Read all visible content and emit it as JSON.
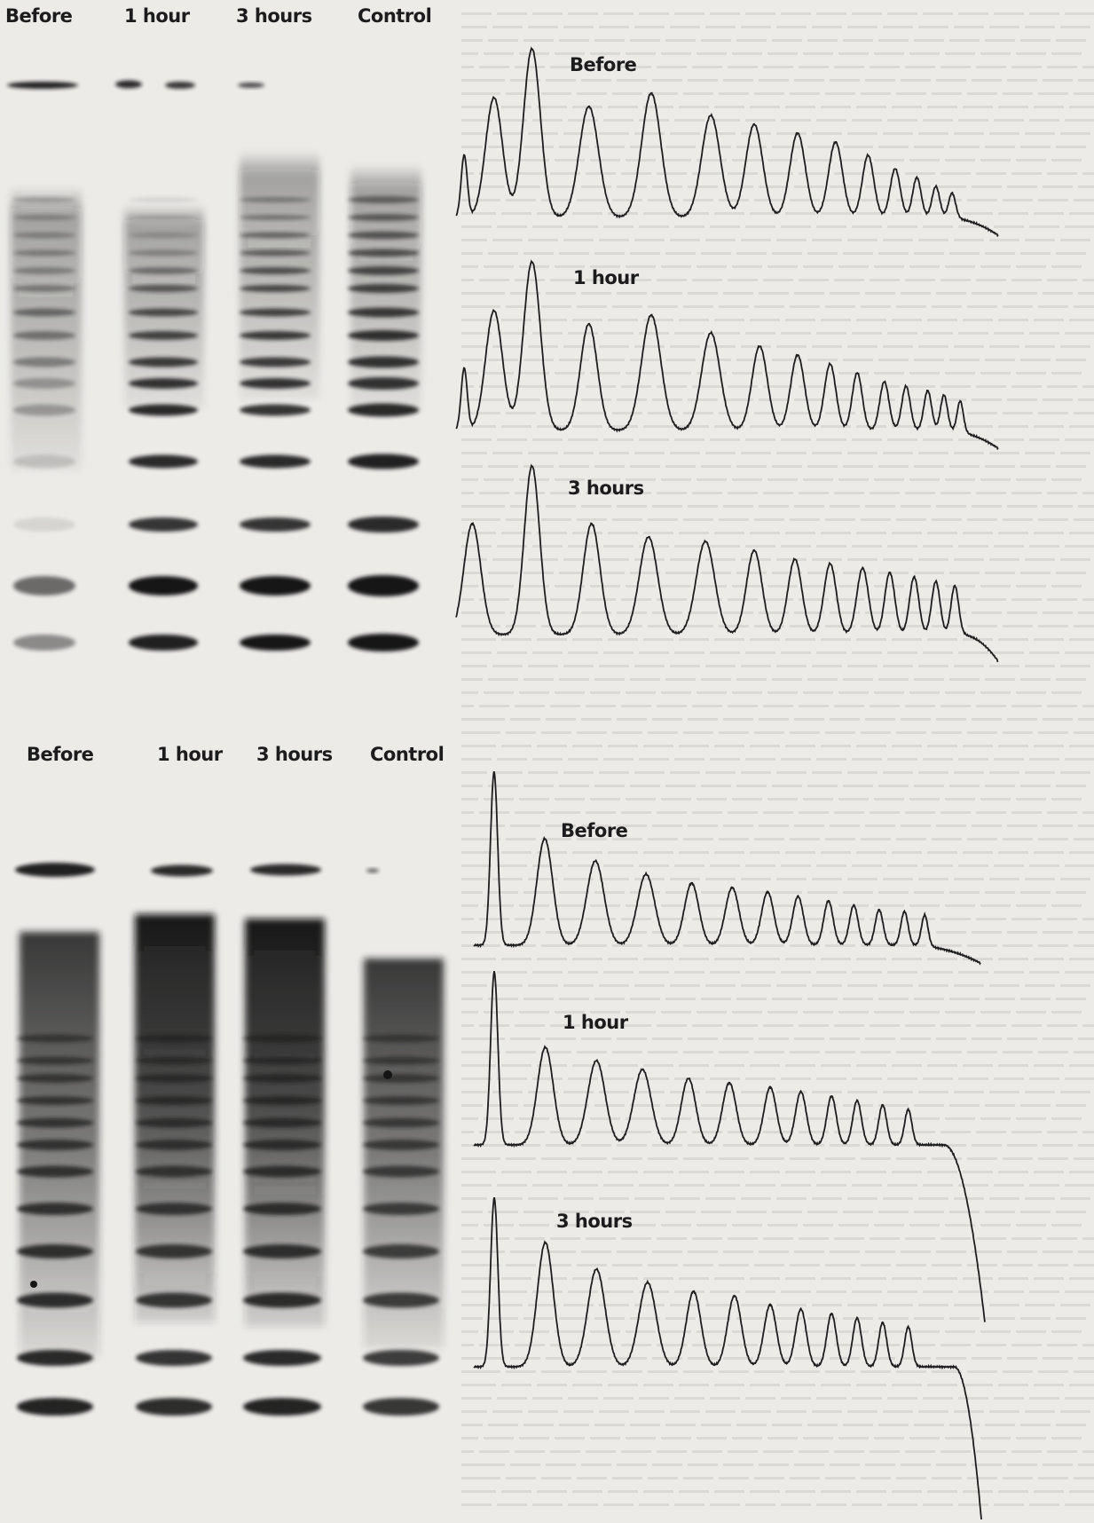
{
  "top_panel": {
    "lane_labels": [
      "Before",
      "1 hour",
      "3 hours",
      "Control"
    ],
    "trace_labels": [
      "Before",
      "1 hour",
      "3 hours"
    ]
  },
  "bottom_panel": {
    "lane_labels": [
      "Before",
      "1 hour",
      "3 hours",
      "Control"
    ],
    "trace_labels": [
      "Before",
      "1 hour",
      "3 hours"
    ]
  },
  "colors": {
    "background": "#ecebe8",
    "ink": "#1c1c1c",
    "band": "#151515"
  }
}
